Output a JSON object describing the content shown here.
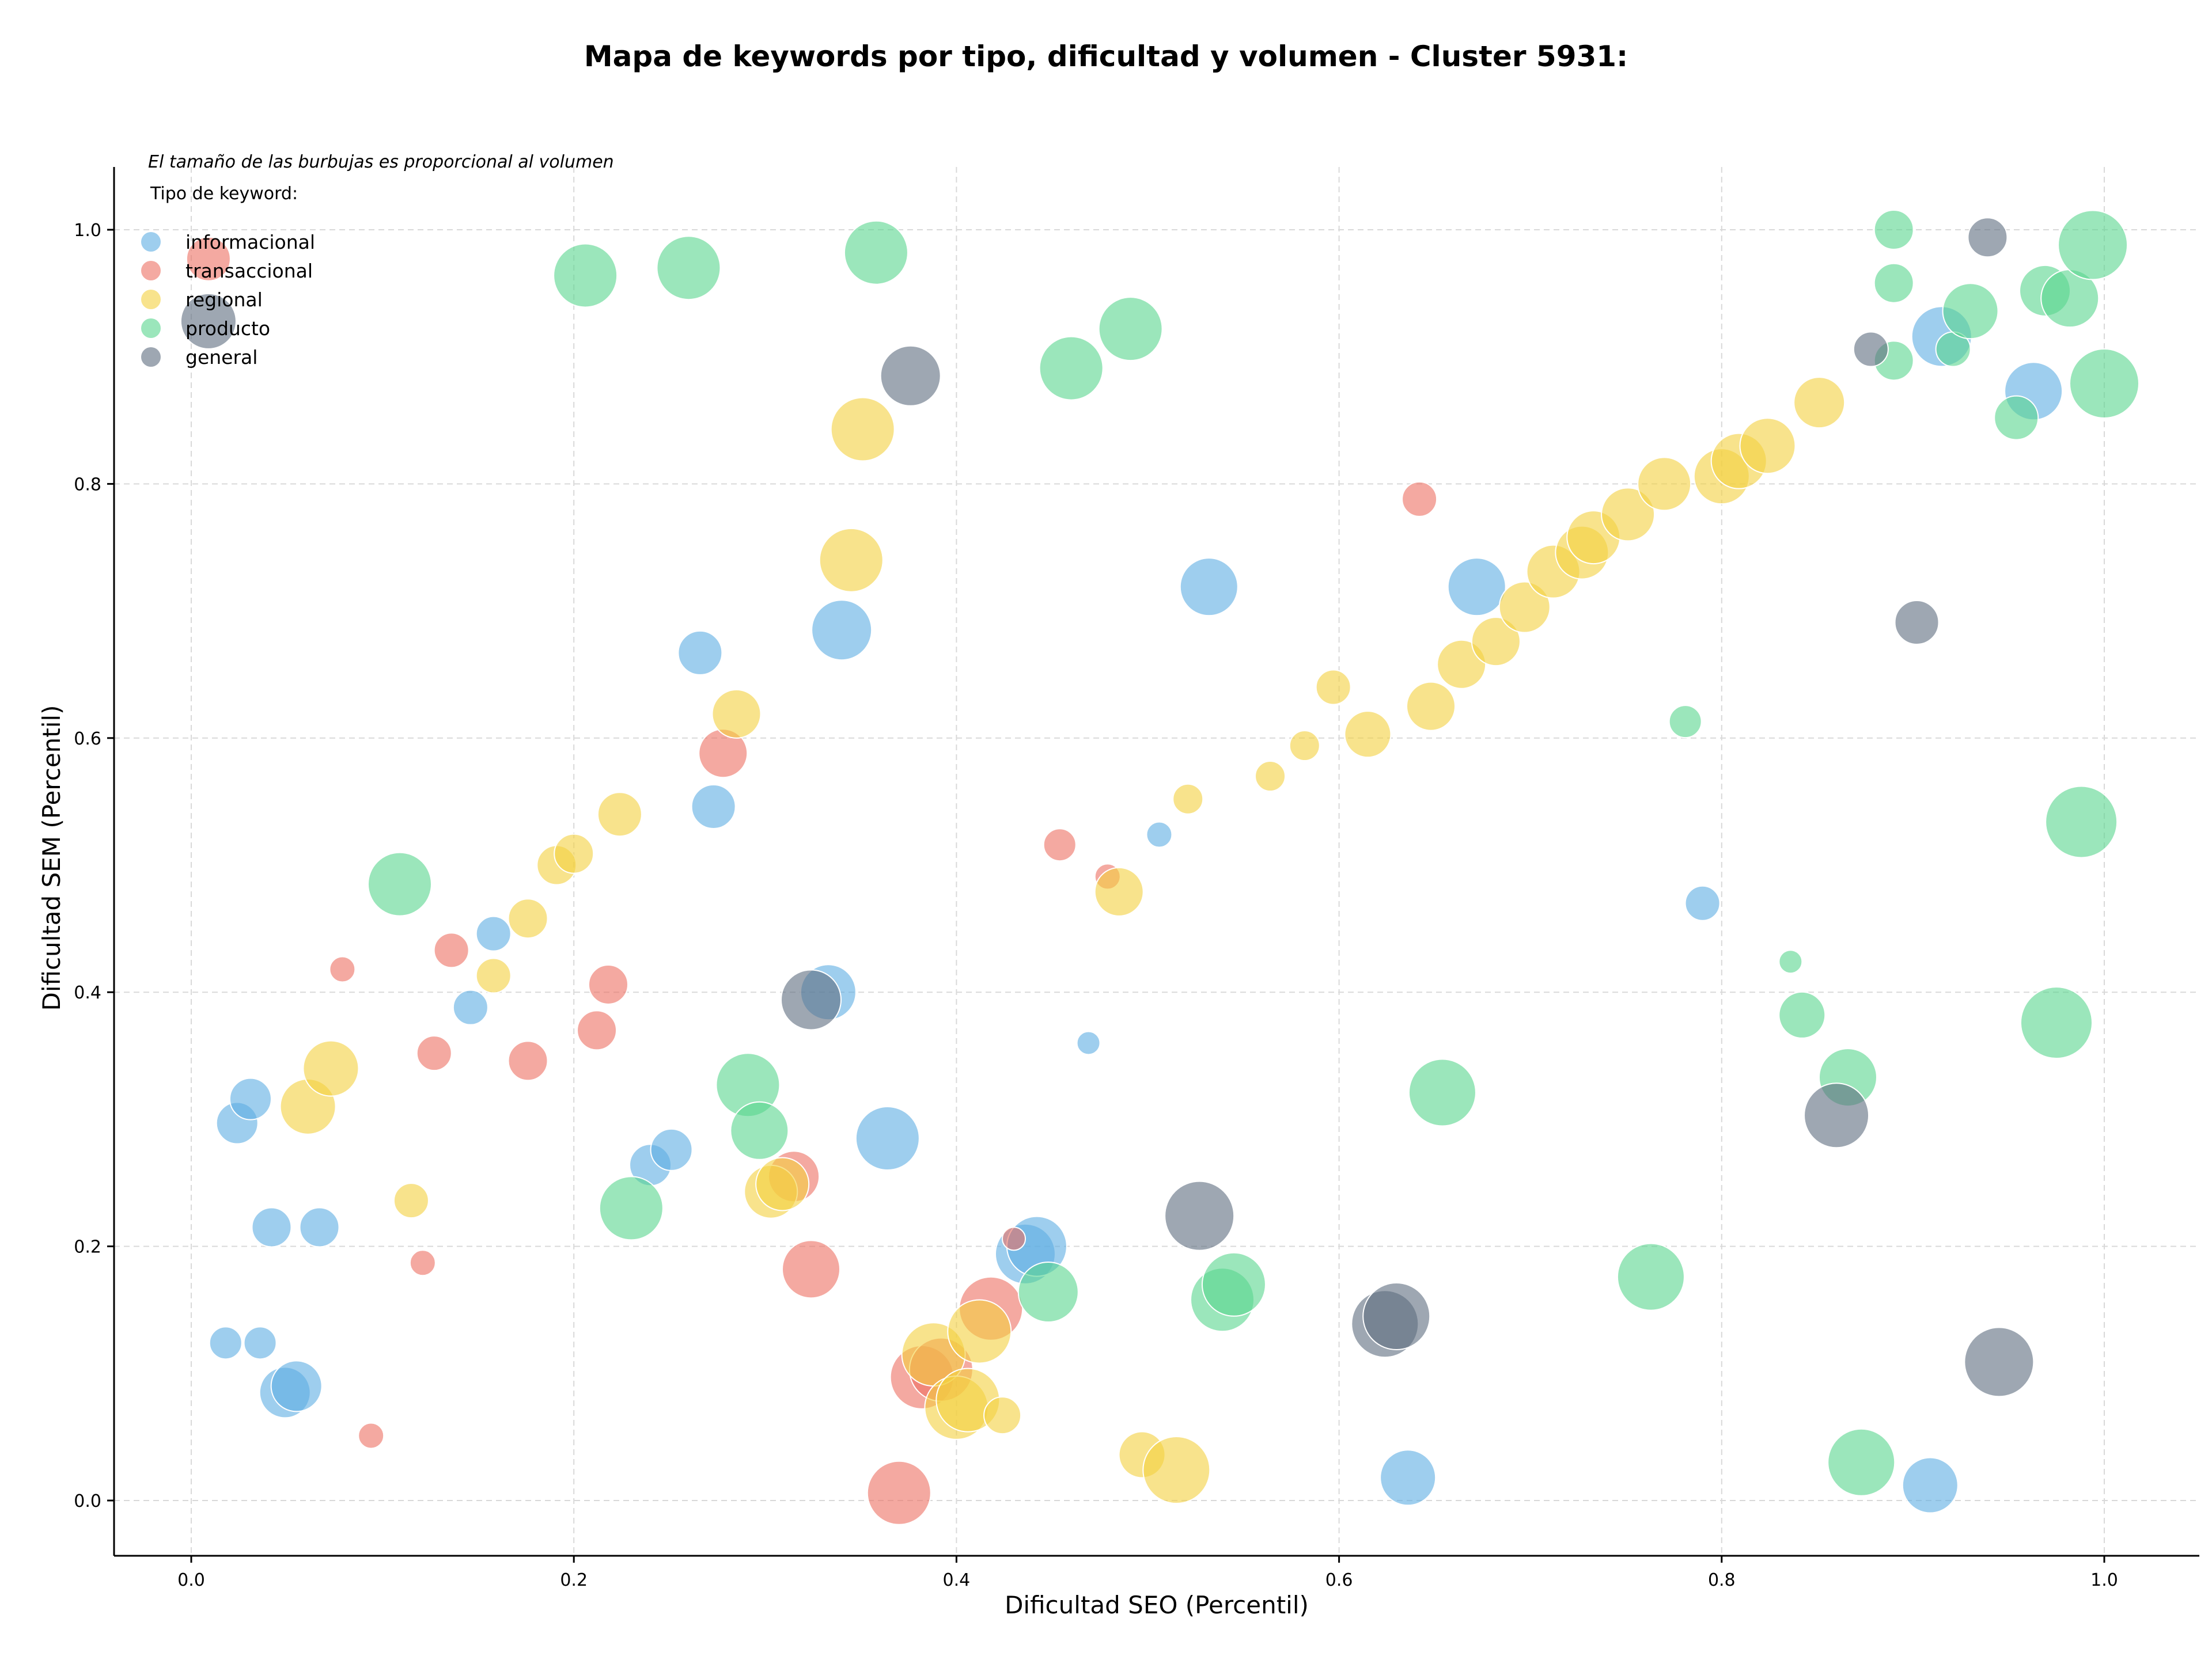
{
  "chart_data": {
    "type": "scatter",
    "title": "Mapa de keywords por tipo, dificultad y volumen - Cluster 5931:",
    "xlabel": "Dificultad SEO (Percentil)",
    "ylabel": "Dificultad SEM (Percentil)",
    "xlim": [
      -0.04,
      1.05
    ],
    "ylim": [
      -0.043,
      1.05
    ],
    "xticks": [
      0.0,
      0.2,
      0.4,
      0.6,
      0.8,
      1.0
    ],
    "yticks": [
      0.0,
      0.2,
      0.4,
      0.6,
      0.8,
      1.0
    ],
    "xtick_labels": [
      "0.0",
      "0.2",
      "0.4",
      "0.6",
      "0.8",
      "1.0"
    ],
    "ytick_labels": [
      "0.0",
      "0.2",
      "0.4",
      "0.6",
      "0.8",
      "1.0"
    ],
    "grid": true,
    "size_note": "El tamaño de las burbujas es proporcional al volumen",
    "legend_title": "Tipo de keyword:",
    "legend_position": "top-left",
    "series": [
      {
        "name": "informacional",
        "color": "#5DADE2",
        "points": [
          [
            0.018,
            0.124,
            28
          ],
          [
            0.036,
            0.124,
            28
          ],
          [
            0.024,
            0.297,
            36
          ],
          [
            0.031,
            0.316,
            36
          ],
          [
            0.042,
            0.215,
            34
          ],
          [
            0.067,
            0.215,
            34
          ],
          [
            0.049,
            0.085,
            44
          ],
          [
            0.055,
            0.09,
            44
          ],
          [
            0.146,
            0.388,
            30
          ],
          [
            0.158,
            0.446,
            30
          ],
          [
            0.24,
            0.264,
            36
          ],
          [
            0.251,
            0.276,
            36
          ],
          [
            0.266,
            0.667,
            38
          ],
          [
            0.273,
            0.546,
            38
          ],
          [
            0.333,
            0.4,
            48
          ],
          [
            0.34,
            0.685,
            52
          ],
          [
            0.364,
            0.285,
            55
          ],
          [
            0.436,
            0.194,
            52
          ],
          [
            0.442,
            0.2,
            52
          ],
          [
            0.469,
            0.36,
            20
          ],
          [
            0.506,
            0.524,
            22
          ],
          [
            0.532,
            0.719,
            50
          ],
          [
            0.636,
            0.018,
            48
          ],
          [
            0.672,
            0.719,
            50
          ],
          [
            0.79,
            0.47,
            30
          ],
          [
            0.909,
            0.012,
            48
          ],
          [
            0.915,
            0.916,
            52
          ],
          [
            0.963,
            0.873,
            50
          ]
        ]
      },
      {
        "name": "transaccional",
        "color": "#EC7063",
        "points": [
          [
            0.009,
            0.977,
            38
          ],
          [
            0.079,
            0.418,
            22
          ],
          [
            0.094,
            0.051,
            22
          ],
          [
            0.121,
            0.187,
            22
          ],
          [
            0.127,
            0.352,
            30
          ],
          [
            0.136,
            0.433,
            30
          ],
          [
            0.176,
            0.346,
            34
          ],
          [
            0.212,
            0.37,
            34
          ],
          [
            0.218,
            0.406,
            34
          ],
          [
            0.278,
            0.588,
            42
          ],
          [
            0.315,
            0.255,
            44
          ],
          [
            0.324,
            0.182,
            50
          ],
          [
            0.37,
            0.006,
            55
          ],
          [
            0.382,
            0.097,
            55
          ],
          [
            0.392,
            0.103,
            55
          ],
          [
            0.418,
            0.151,
            55
          ],
          [
            0.43,
            0.206,
            20
          ],
          [
            0.454,
            0.516,
            28
          ],
          [
            0.479,
            0.491,
            22
          ],
          [
            0.642,
            0.788,
            30
          ]
        ]
      },
      {
        "name": "regional",
        "color": "#F4D03F",
        "points": [
          [
            0.061,
            0.31,
            48
          ],
          [
            0.073,
            0.34,
            48
          ],
          [
            0.115,
            0.236,
            30
          ],
          [
            0.158,
            0.413,
            30
          ],
          [
            0.176,
            0.458,
            34
          ],
          [
            0.191,
            0.5,
            34
          ],
          [
            0.2,
            0.509,
            34
          ],
          [
            0.224,
            0.54,
            38
          ],
          [
            0.285,
            0.619,
            42
          ],
          [
            0.303,
            0.243,
            46
          ],
          [
            0.309,
            0.249,
            46
          ],
          [
            0.345,
            0.74,
            55
          ],
          [
            0.351,
            0.843,
            55
          ],
          [
            0.388,
            0.115,
            55
          ],
          [
            0.4,
            0.073,
            55
          ],
          [
            0.406,
            0.079,
            55
          ],
          [
            0.412,
            0.133,
            55
          ],
          [
            0.424,
            0.067,
            32
          ],
          [
            0.485,
            0.479,
            42
          ],
          [
            0.497,
            0.036,
            40
          ],
          [
            0.515,
            0.024,
            58
          ],
          [
            0.521,
            0.552,
            26
          ],
          [
            0.564,
            0.57,
            26
          ],
          [
            0.582,
            0.594,
            26
          ],
          [
            0.597,
            0.64,
            30
          ],
          [
            0.615,
            0.603,
            40
          ],
          [
            0.648,
            0.625,
            42
          ],
          [
            0.664,
            0.658,
            42
          ],
          [
            0.682,
            0.676,
            42
          ],
          [
            0.697,
            0.703,
            44
          ],
          [
            0.712,
            0.731,
            46
          ],
          [
            0.727,
            0.746,
            46
          ],
          [
            0.733,
            0.758,
            46
          ],
          [
            0.751,
            0.776,
            46
          ],
          [
            0.77,
            0.8,
            46
          ],
          [
            0.8,
            0.806,
            48
          ],
          [
            0.809,
            0.818,
            48
          ],
          [
            0.824,
            0.83,
            48
          ],
          [
            0.851,
            0.864,
            44
          ]
        ]
      },
      {
        "name": "producto",
        "color": "#58D68D",
        "points": [
          [
            0.109,
            0.485,
            55
          ],
          [
            0.206,
            0.964,
            55
          ],
          [
            0.26,
            0.97,
            55
          ],
          [
            0.23,
            0.23,
            55
          ],
          [
            0.291,
            0.327,
            55
          ],
          [
            0.297,
            0.291,
            50
          ],
          [
            0.358,
            0.982,
            55
          ],
          [
            0.448,
            0.164,
            52
          ],
          [
            0.46,
            0.891,
            55
          ],
          [
            0.491,
            0.922,
            55
          ],
          [
            0.539,
            0.158,
            55
          ],
          [
            0.545,
            0.17,
            55
          ],
          [
            0.654,
            0.321,
            58
          ],
          [
            0.763,
            0.176,
            58
          ],
          [
            0.781,
            0.613,
            28
          ],
          [
            0.836,
            0.424,
            20
          ],
          [
            0.842,
            0.382,
            40
          ],
          [
            0.866,
            0.333,
            50
          ],
          [
            0.873,
            0.03,
            58
          ],
          [
            0.89,
            1.0,
            34
          ],
          [
            0.89,
            0.958,
            34
          ],
          [
            0.89,
            0.897,
            34
          ],
          [
            0.921,
            0.906,
            30
          ],
          [
            0.93,
            0.936,
            48
          ],
          [
            0.954,
            0.852,
            38
          ],
          [
            0.969,
            0.952,
            44
          ],
          [
            0.982,
            0.946,
            50
          ],
          [
            0.975,
            0.376,
            62
          ],
          [
            0.988,
            0.534,
            62
          ],
          [
            0.994,
            0.988,
            60
          ],
          [
            1.0,
            0.879,
            60
          ]
        ]
      },
      {
        "name": "general",
        "color": "#5D6D7E",
        "points": [
          [
            0.009,
            0.928,
            48
          ],
          [
            0.324,
            0.394,
            52
          ],
          [
            0.376,
            0.885,
            52
          ],
          [
            0.527,
            0.224,
            60
          ],
          [
            0.624,
            0.139,
            58
          ],
          [
            0.63,
            0.145,
            58
          ],
          [
            0.86,
            0.303,
            56
          ],
          [
            0.878,
            0.906,
            30
          ],
          [
            0.902,
            0.691,
            38
          ],
          [
            0.939,
            0.994,
            34
          ],
          [
            0.945,
            0.109,
            60
          ]
        ]
      }
    ]
  }
}
